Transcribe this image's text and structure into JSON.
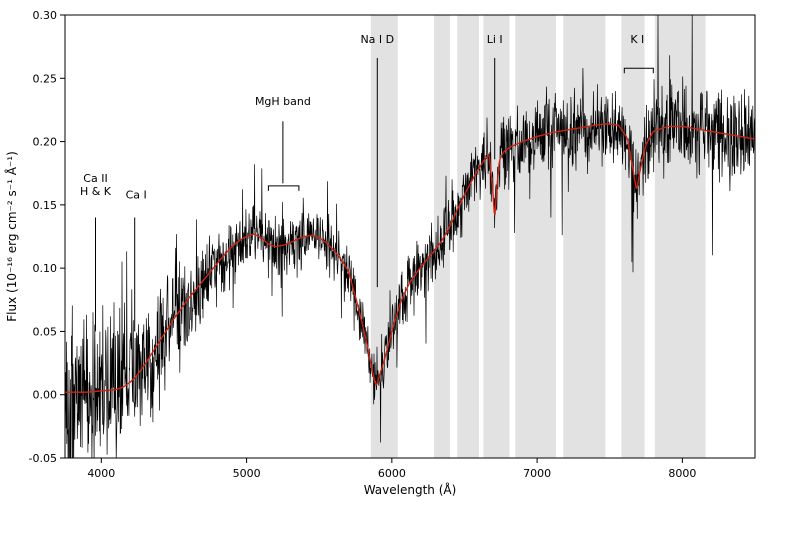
{
  "figure": {
    "background": "#ffffff",
    "band_color": "#e2e2e2",
    "frame_color": "#000000"
  },
  "chart_data": {
    "type": "line",
    "title": "",
    "xlabel": "Wavelength (Å)",
    "ylabel": "Flux (10⁻¹⁶ erg cm⁻² s⁻¹ Å⁻¹)",
    "xlim": [
      3750,
      8500
    ],
    "ylim": [
      -0.05,
      0.3
    ],
    "xticks": [
      4000,
      5000,
      6000,
      7000,
      8000
    ],
    "yticks": [
      -0.05,
      0.0,
      0.05,
      0.1,
      0.15,
      0.2,
      0.25,
      0.3
    ],
    "grid": false,
    "legend": "none",
    "shaded_bands": [
      [
        5855,
        6040
      ],
      [
        6290,
        6400
      ],
      [
        6450,
        6600
      ],
      [
        6630,
        6810
      ],
      [
        6850,
        7130
      ],
      [
        7180,
        7470
      ],
      [
        7580,
        7740
      ],
      [
        7810,
        8160
      ]
    ],
    "series": [
      {
        "name": "observed-spectrum",
        "color": "#000000",
        "style": "noisy",
        "stroke_width": 0.7
      },
      {
        "name": "model-fit",
        "color": "#cc2414",
        "style": "smooth",
        "stroke_width": 1.4
      }
    ],
    "model_points": [
      [
        3750,
        0.002
      ],
      [
        3900,
        0.002
      ],
      [
        4000,
        0.003
      ],
      [
        4100,
        0.004
      ],
      [
        4150,
        0.006
      ],
      [
        4200,
        0.01
      ],
      [
        4250,
        0.016
      ],
      [
        4300,
        0.024
      ],
      [
        4350,
        0.033
      ],
      [
        4400,
        0.042
      ],
      [
        4450,
        0.051
      ],
      [
        4500,
        0.06
      ],
      [
        4550,
        0.068
      ],
      [
        4600,
        0.076
      ],
      [
        4650,
        0.083
      ],
      [
        4700,
        0.09
      ],
      [
        4750,
        0.097
      ],
      [
        4800,
        0.104
      ],
      [
        4850,
        0.111
      ],
      [
        4900,
        0.117
      ],
      [
        4950,
        0.122
      ],
      [
        5000,
        0.125
      ],
      [
        5050,
        0.127
      ],
      [
        5100,
        0.124
      ],
      [
        5150,
        0.119
      ],
      [
        5200,
        0.117
      ],
      [
        5250,
        0.118
      ],
      [
        5300,
        0.12
      ],
      [
        5350,
        0.123
      ],
      [
        5400,
        0.125
      ],
      [
        5450,
        0.126
      ],
      [
        5500,
        0.124
      ],
      [
        5550,
        0.12
      ],
      [
        5600,
        0.114
      ],
      [
        5650,
        0.107
      ],
      [
        5700,
        0.098
      ],
      [
        5760,
        0.073
      ],
      [
        5820,
        0.045
      ],
      [
        5860,
        0.022
      ],
      [
        5885,
        0.009
      ],
      [
        5895,
        0.007
      ],
      [
        5910,
        0.013
      ],
      [
        5950,
        0.028
      ],
      [
        6000,
        0.05
      ],
      [
        6060,
        0.073
      ],
      [
        6120,
        0.088
      ],
      [
        6200,
        0.101
      ],
      [
        6280,
        0.112
      ],
      [
        6340,
        0.121
      ],
      [
        6400,
        0.133
      ],
      [
        6450,
        0.146
      ],
      [
        6500,
        0.158
      ],
      [
        6550,
        0.169
      ],
      [
        6600,
        0.179
      ],
      [
        6640,
        0.186
      ],
      [
        6670,
        0.19
      ],
      [
        6700,
        0.155
      ],
      [
        6708,
        0.133
      ],
      [
        6716,
        0.155
      ],
      [
        6740,
        0.185
      ],
      [
        6770,
        0.192
      ],
      [
        6820,
        0.196
      ],
      [
        6900,
        0.2
      ],
      [
        7000,
        0.204
      ],
      [
        7100,
        0.207
      ],
      [
        7200,
        0.209
      ],
      [
        7300,
        0.211
      ],
      [
        7400,
        0.213
      ],
      [
        7480,
        0.214
      ],
      [
        7560,
        0.213
      ],
      [
        7620,
        0.203
      ],
      [
        7660,
        0.178
      ],
      [
        7685,
        0.161
      ],
      [
        7710,
        0.178
      ],
      [
        7750,
        0.198
      ],
      [
        7800,
        0.208
      ],
      [
        7900,
        0.212
      ],
      [
        8000,
        0.212
      ],
      [
        8100,
        0.21
      ],
      [
        8200,
        0.208
      ],
      [
        8300,
        0.206
      ],
      [
        8400,
        0.204
      ],
      [
        8500,
        0.202
      ]
    ],
    "noise_profile": [
      [
        3750,
        0.04
      ],
      [
        4000,
        0.038
      ],
      [
        4200,
        0.034
      ],
      [
        4400,
        0.028
      ],
      [
        4600,
        0.022
      ],
      [
        4800,
        0.018
      ],
      [
        5000,
        0.015
      ],
      [
        5400,
        0.013
      ],
      [
        5800,
        0.012
      ],
      [
        6000,
        0.014
      ],
      [
        6300,
        0.016
      ],
      [
        6600,
        0.016
      ],
      [
        6900,
        0.016
      ],
      [
        7200,
        0.017
      ],
      [
        7500,
        0.018
      ],
      [
        7800,
        0.019
      ],
      [
        8200,
        0.021
      ],
      [
        8500,
        0.024
      ]
    ],
    "noise_seed": 1337,
    "sample_step": 2.5,
    "annotations": [
      {
        "id": "ca2hk",
        "lines": [
          "Ca II",
          "H & K"
        ],
        "wavelength": 3960,
        "label_flux": 0.168,
        "line": {
          "x": 3960,
          "from": 0.14,
          "to": 0.05
        }
      },
      {
        "id": "ca1",
        "lines": [
          "Ca I"
        ],
        "wavelength": 4240,
        "label_flux": 0.155,
        "line": {
          "x": 4230,
          "from": 0.14,
          "to": 0.05
        }
      },
      {
        "id": "mgh",
        "lines": [
          "MgH band"
        ],
        "wavelength": 5250,
        "label_flux": 0.229,
        "connector": {
          "from": 0.216,
          "to": 0.167
        },
        "bracket": {
          "range": [
            5150,
            5360
          ],
          "flux": 0.165
        }
      },
      {
        "id": "nad",
        "lines": [
          "Na I D"
        ],
        "wavelength": 5900,
        "label_flux": 0.278,
        "line": {
          "x": 5900,
          "from": 0.266,
          "to": 0.085
        }
      },
      {
        "id": "li",
        "lines": [
          "Li I"
        ],
        "wavelength": 6708,
        "label_flux": 0.278,
        "line": {
          "x": 6708,
          "from": 0.266,
          "to": 0.186
        }
      },
      {
        "id": "ki",
        "lines": [
          "K I"
        ],
        "wavelength": 7690,
        "label_flux": 0.278,
        "bracket": {
          "range": [
            7600,
            7800
          ],
          "flux": 0.258
        }
      }
    ]
  }
}
